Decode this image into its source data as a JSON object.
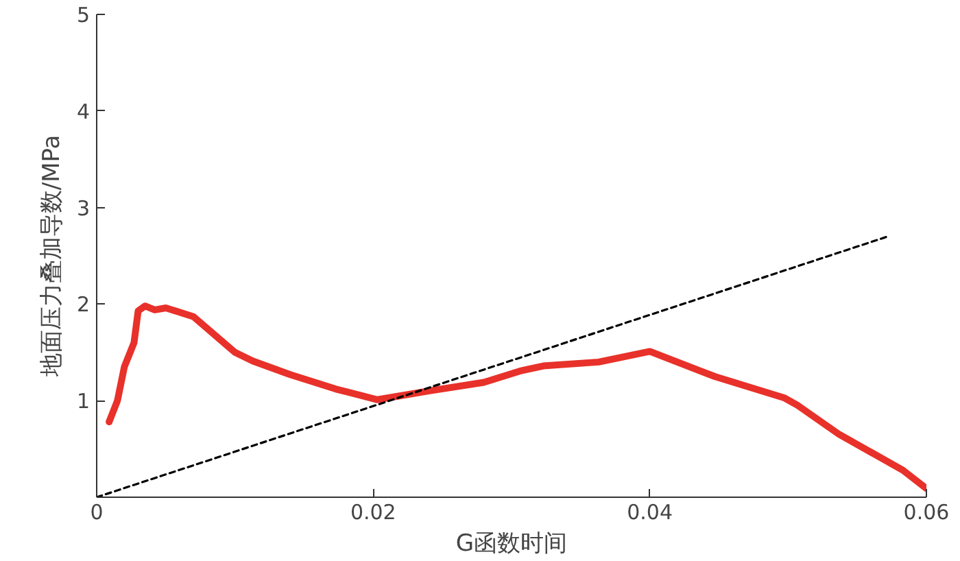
{
  "chart_data": {
    "type": "line",
    "xlabel": "G函数时间",
    "ylabel": "地面压力叠加导数/MPa",
    "xlim": [
      0,
      0.06
    ],
    "ylim": [
      0,
      5
    ],
    "xticks": [
      0,
      0.02,
      0.04,
      0.06
    ],
    "yticks": [
      {
        "value": 0,
        "label": null
      },
      1,
      2,
      3,
      4,
      5
    ],
    "grid": false,
    "series": [
      {
        "color": "#e8312a",
        "line_style": "solid",
        "x": [
          0.0009,
          0.0015,
          0.002,
          0.0027,
          0.003,
          0.0035,
          0.0042,
          0.005,
          0.007,
          0.01,
          0.0113,
          0.014,
          0.0173,
          0.0203,
          0.024,
          0.028,
          0.0307,
          0.0323,
          0.0363,
          0.04,
          0.0447,
          0.0497,
          0.0507,
          0.0537,
          0.0583,
          0.06
        ],
        "values": [
          0.78,
          1.0,
          1.35,
          1.6,
          1.93,
          1.98,
          1.94,
          1.96,
          1.87,
          1.5,
          1.41,
          1.27,
          1.12,
          1.01,
          1.1,
          1.19,
          1.31,
          1.36,
          1.4,
          1.51,
          1.25,
          1.03,
          0.95,
          0.65,
          0.28,
          0.09
        ]
      },
      {
        "color": "#000000",
        "line_style": "dashed",
        "x": [
          0,
          0.0572
        ],
        "values": [
          0,
          2.7
        ]
      }
    ]
  }
}
